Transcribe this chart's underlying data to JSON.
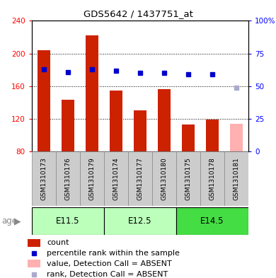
{
  "title": "GDS5642 / 1437751_at",
  "samples": [
    "GSM1310173",
    "GSM1310176",
    "GSM1310179",
    "GSM1310174",
    "GSM1310177",
    "GSM1310180",
    "GSM1310175",
    "GSM1310178",
    "GSM1310181"
  ],
  "counts": [
    204,
    143,
    222,
    155,
    130,
    156,
    113,
    119,
    114
  ],
  "ranks": [
    63,
    61,
    63,
    62,
    60,
    60,
    59,
    59,
    null
  ],
  "absent_last": true,
  "rank_absent": 49,
  "ylim_left": [
    80,
    240
  ],
  "ylim_right": [
    0,
    100
  ],
  "yticks_left": [
    80,
    120,
    160,
    200,
    240
  ],
  "yticks_right": [
    0,
    25,
    50,
    75,
    100
  ],
  "yticklabels_left": [
    "80",
    "120",
    "160",
    "200",
    "240"
  ],
  "yticklabels_right": [
    "0",
    "25",
    "50",
    "75",
    "100%"
  ],
  "age_groups": [
    {
      "label": "E11.5",
      "start": 0,
      "end": 3,
      "color": "#bbffbb"
    },
    {
      "label": "E12.5",
      "start": 3,
      "end": 6,
      "color": "#bbffbb"
    },
    {
      "label": "E14.5",
      "start": 6,
      "end": 9,
      "color": "#44dd44"
    }
  ],
  "bar_color_normal": "#cc2200",
  "bar_color_absent": "#ffb0b0",
  "rank_color_normal": "#0000cc",
  "rank_color_absent": "#aaaacc",
  "bg_sample_label": "#cccccc",
  "bar_width": 0.55,
  "dotted_line_vals": [
    120,
    160,
    200
  ]
}
